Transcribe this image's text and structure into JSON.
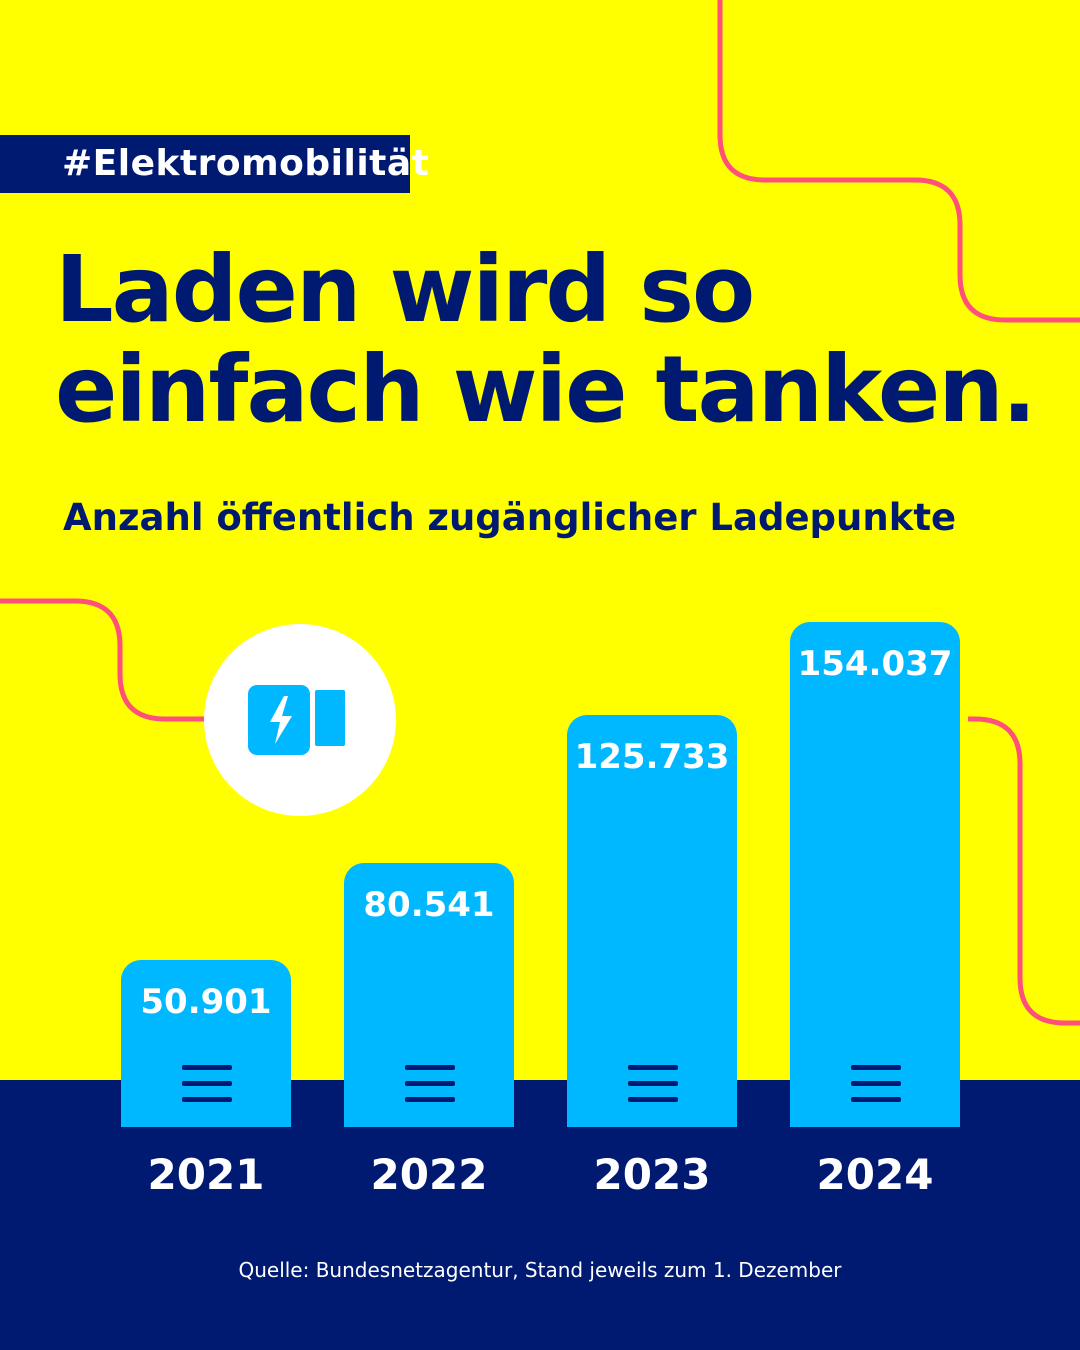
{
  "hashtag": "#Elektromobilität",
  "headline": [
    "Laden wird so",
    "einfach wie tanken."
  ],
  "colors": {
    "background": "#ffff00",
    "navy": "#001a72",
    "bar": "#00b8ff",
    "accent_line": "#ff4f7b"
  },
  "icons": [
    "charging-plug-icon",
    "charger-lines-icon"
  ],
  "chart_data": {
    "type": "bar",
    "title": "Anzahl öffentlich zugänglicher Ladepunkte",
    "categories": [
      "2021",
      "2022",
      "2023",
      "2024"
    ],
    "values": [
      50901,
      80541,
      125733,
      154037
    ],
    "value_labels": [
      "50.901",
      "80.541",
      "125.733",
      "154.037"
    ],
    "grid": false,
    "legend": "none"
  },
  "source": "Quelle: Bundesnetzagentur, Stand jeweils zum 1. Dezember"
}
